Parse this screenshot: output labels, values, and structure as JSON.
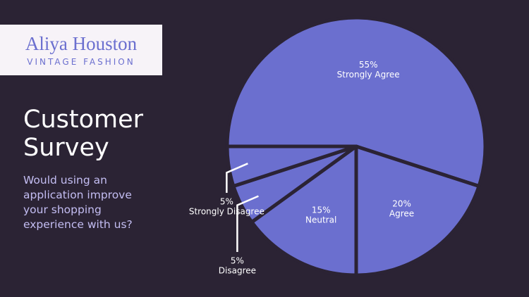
{
  "brand": {
    "name": "Aliya Houston",
    "tagline": "VINTAGE FASHION"
  },
  "chart_data": {
    "type": "pie",
    "title": "Customer Survey",
    "subtitle": "Would using an application improve your shopping experience with us?",
    "categories": [
      "Strongly Agree",
      "Agree",
      "Neutral",
      "Disagree",
      "Strongly Disagree"
    ],
    "values": [
      55,
      20,
      15,
      5,
      5
    ],
    "value_labels": [
      "55%",
      "20%",
      "15%",
      "5%",
      "5%"
    ],
    "color": "#6b6fcf"
  }
}
